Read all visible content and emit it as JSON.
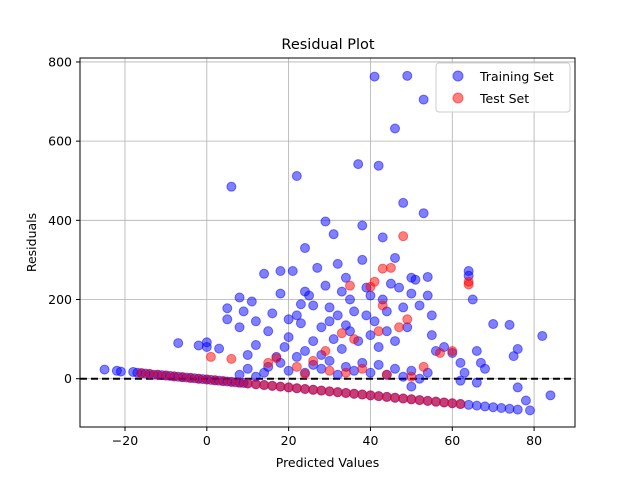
{
  "chart_data": {
    "type": "scatter",
    "title": "Residual Plot",
    "xlabel": "Predicted Values",
    "ylabel": "Residuals",
    "xlim": [
      -31,
      90
    ],
    "ylim": [
      -122,
      810
    ],
    "xticks": [
      -20,
      0,
      20,
      40,
      60,
      80
    ],
    "yticks": [
      0,
      200,
      400,
      600,
      800
    ],
    "x_tick_labels": [
      "−20",
      "0",
      "20",
      "40",
      "60",
      "80"
    ],
    "y_tick_labels": [
      "0",
      "200",
      "400",
      "600",
      "800"
    ],
    "grid": true,
    "legend_position": "top-right",
    "reference_line": {
      "y": 0,
      "style": "dashed",
      "color": "#000000"
    },
    "colors": {
      "training": "#0000ff",
      "test": "#ff0000"
    },
    "marker_alpha": 0.5,
    "series": [
      {
        "name": "Training Set",
        "color": "#0000ff",
        "points": [
          [
            -25,
            23
          ],
          [
            -22,
            20
          ],
          [
            -21,
            18
          ],
          [
            -18,
            17
          ],
          [
            -17,
            15
          ],
          [
            -16,
            14
          ],
          [
            -15,
            13
          ],
          [
            -14,
            12
          ],
          [
            -13,
            10
          ],
          [
            -12,
            10
          ],
          [
            -11,
            9
          ],
          [
            -10,
            8
          ],
          [
            -9,
            7
          ],
          [
            -8,
            6
          ],
          [
            -7,
            5
          ],
          [
            -6,
            4
          ],
          [
            -5,
            3
          ],
          [
            -4,
            2
          ],
          [
            -3,
            1
          ],
          [
            -2,
            0
          ],
          [
            -1,
            -1
          ],
          [
            0,
            -2
          ],
          [
            1,
            -3
          ],
          [
            2,
            -4
          ],
          [
            3,
            -5
          ],
          [
            4,
            -6
          ],
          [
            5,
            -7
          ],
          [
            6,
            -8
          ],
          [
            7,
            -9
          ],
          [
            8,
            -10
          ],
          [
            9,
            -11
          ],
          [
            10,
            -12
          ],
          [
            12,
            -14
          ],
          [
            14,
            -16
          ],
          [
            16,
            -18
          ],
          [
            18,
            -20
          ],
          [
            20,
            -22
          ],
          [
            22,
            -24
          ],
          [
            24,
            -26
          ],
          [
            26,
            -28
          ],
          [
            28,
            -30
          ],
          [
            30,
            -32
          ],
          [
            32,
            -34
          ],
          [
            34,
            -36
          ],
          [
            36,
            -38
          ],
          [
            38,
            -40
          ],
          [
            40,
            -42
          ],
          [
            42,
            -44
          ],
          [
            44,
            -46
          ],
          [
            46,
            -48
          ],
          [
            48,
            -50
          ],
          [
            50,
            -52
          ],
          [
            52,
            -54
          ],
          [
            54,
            -56
          ],
          [
            56,
            -58
          ],
          [
            58,
            -60
          ],
          [
            60,
            -62
          ],
          [
            62,
            -64
          ],
          [
            64,
            -66
          ],
          [
            66,
            -68
          ],
          [
            68,
            -70
          ],
          [
            70,
            -72
          ],
          [
            72,
            -74
          ],
          [
            74,
            -76
          ],
          [
            76,
            -78
          ],
          [
            78,
            -55
          ],
          [
            79,
            -80
          ],
          [
            84,
            -42
          ],
          [
            76,
            -22
          ],
          [
            66,
            -10
          ],
          [
            62,
            -5
          ],
          [
            50,
            -20
          ],
          [
            -7,
            90
          ],
          [
            -2,
            84
          ],
          [
            0,
            92
          ],
          [
            0,
            80
          ],
          [
            3,
            76
          ],
          [
            5,
            178
          ],
          [
            5,
            150
          ],
          [
            6,
            485
          ],
          [
            8,
            205
          ],
          [
            8,
            130
          ],
          [
            9,
            170
          ],
          [
            10,
            60
          ],
          [
            11,
            195
          ],
          [
            12,
            145
          ],
          [
            12,
            85
          ],
          [
            14,
            265
          ],
          [
            15,
            120
          ],
          [
            16,
            165
          ],
          [
            17,
            55
          ],
          [
            18,
            215
          ],
          [
            18,
            272
          ],
          [
            19,
            80
          ],
          [
            20,
            150
          ],
          [
            20,
            105
          ],
          [
            21,
            272
          ],
          [
            22,
            512
          ],
          [
            22,
            160
          ],
          [
            23,
            140
          ],
          [
            23,
            188
          ],
          [
            24,
            70
          ],
          [
            24,
            220
          ],
          [
            24,
            330
          ],
          [
            25,
            210
          ],
          [
            26,
            185
          ],
          [
            26,
            95
          ],
          [
            27,
            280
          ],
          [
            28,
            130
          ],
          [
            28,
            60
          ],
          [
            29,
            397
          ],
          [
            29,
            235
          ],
          [
            30,
            145
          ],
          [
            30,
            180
          ],
          [
            31,
            365
          ],
          [
            31,
            100
          ],
          [
            32,
            290
          ],
          [
            32,
            160
          ],
          [
            33,
            75
          ],
          [
            33,
            220
          ],
          [
            34,
            255
          ],
          [
            34,
            135
          ],
          [
            35,
            200
          ],
          [
            35,
            120
          ],
          [
            36,
            170
          ],
          [
            37,
            542
          ],
          [
            37,
            95
          ],
          [
            38,
            387
          ],
          [
            38,
            300
          ],
          [
            39,
            160
          ],
          [
            39,
            230
          ],
          [
            40,
            110
          ],
          [
            40,
            210
          ],
          [
            41,
            763
          ],
          [
            41,
            145
          ],
          [
            42,
            538
          ],
          [
            42,
            80
          ],
          [
            43,
            357
          ],
          [
            43,
            200
          ],
          [
            44,
            170
          ],
          [
            44,
            120
          ],
          [
            45,
            240
          ],
          [
            46,
            632
          ],
          [
            46,
            305
          ],
          [
            46,
            95
          ],
          [
            47,
            230
          ],
          [
            48,
            444
          ],
          [
            48,
            180
          ],
          [
            49,
            765
          ],
          [
            49,
            130
          ],
          [
            50,
            255
          ],
          [
            50,
            215
          ],
          [
            51,
            250
          ],
          [
            52,
            185
          ],
          [
            53,
            705
          ],
          [
            53,
            418
          ],
          [
            54,
            257
          ],
          [
            54,
            210
          ],
          [
            55,
            160
          ],
          [
            55,
            110
          ],
          [
            56,
            70
          ],
          [
            58,
            80
          ],
          [
            60,
            65
          ],
          [
            62,
            40
          ],
          [
            63,
            15
          ],
          [
            64,
            272
          ],
          [
            64,
            260
          ],
          [
            65,
            200
          ],
          [
            66,
            70
          ],
          [
            67,
            40
          ],
          [
            68,
            25
          ],
          [
            70,
            138
          ],
          [
            74,
            136
          ],
          [
            75,
            57
          ],
          [
            76,
            75
          ],
          [
            82,
            108
          ],
          [
            15,
            30
          ],
          [
            18,
            40
          ],
          [
            20,
            20
          ],
          [
            22,
            55
          ],
          [
            24,
            15
          ],
          [
            26,
            35
          ],
          [
            28,
            25
          ],
          [
            30,
            45
          ],
          [
            32,
            10
          ],
          [
            34,
            30
          ],
          [
            36,
            20
          ],
          [
            38,
            40
          ],
          [
            40,
            15
          ],
          [
            42,
            35
          ],
          [
            44,
            10
          ],
          [
            46,
            25
          ],
          [
            48,
            5
          ],
          [
            50,
            20
          ],
          [
            52,
            0
          ],
          [
            54,
            15
          ],
          [
            8,
            10
          ],
          [
            10,
            25
          ],
          [
            12,
            5
          ],
          [
            14,
            15
          ]
        ]
      },
      {
        "name": "Test Set",
        "color": "#ff0000",
        "points": [
          [
            -16,
            14
          ],
          [
            -14,
            12
          ],
          [
            -12,
            10
          ],
          [
            -10,
            8
          ],
          [
            -8,
            6
          ],
          [
            -6,
            4
          ],
          [
            -4,
            2
          ],
          [
            -2,
            0
          ],
          [
            0,
            -2
          ],
          [
            2,
            -4
          ],
          [
            4,
            -6
          ],
          [
            6,
            -8
          ],
          [
            8,
            -10
          ],
          [
            10,
            -12
          ],
          [
            12,
            -14
          ],
          [
            14,
            -16
          ],
          [
            16,
            -18
          ],
          [
            18,
            -20
          ],
          [
            20,
            -22
          ],
          [
            22,
            -24
          ],
          [
            24,
            -26
          ],
          [
            26,
            -28
          ],
          [
            28,
            -30
          ],
          [
            30,
            -32
          ],
          [
            32,
            -34
          ],
          [
            34,
            -36
          ],
          [
            36,
            -38
          ],
          [
            38,
            -40
          ],
          [
            40,
            -42
          ],
          [
            42,
            -44
          ],
          [
            44,
            -46
          ],
          [
            46,
            -48
          ],
          [
            48,
            -50
          ],
          [
            50,
            -52
          ],
          [
            52,
            -54
          ],
          [
            54,
            -56
          ],
          [
            56,
            -58
          ],
          [
            58,
            -60
          ],
          [
            60,
            -62
          ],
          [
            62,
            -64
          ],
          [
            1,
            55
          ],
          [
            6,
            50
          ],
          [
            15,
            40
          ],
          [
            17,
            52
          ],
          [
            22,
            30
          ],
          [
            26,
            45
          ],
          [
            29,
            70
          ],
          [
            33,
            115
          ],
          [
            35,
            235
          ],
          [
            36,
            100
          ],
          [
            40,
            232
          ],
          [
            41,
            245
          ],
          [
            42,
            120
          ],
          [
            43,
            185
          ],
          [
            43,
            278
          ],
          [
            45,
            280
          ],
          [
            47,
            130
          ],
          [
            48,
            360
          ],
          [
            49,
            150
          ],
          [
            53,
            30
          ],
          [
            57,
            65
          ],
          [
            60,
            70
          ],
          [
            64,
            245
          ],
          [
            64,
            238
          ],
          [
            30,
            20
          ],
          [
            34,
            15
          ],
          [
            38,
            25
          ],
          [
            44,
            10
          ],
          [
            50,
            5
          ],
          [
            24,
            12
          ]
        ]
      }
    ]
  }
}
